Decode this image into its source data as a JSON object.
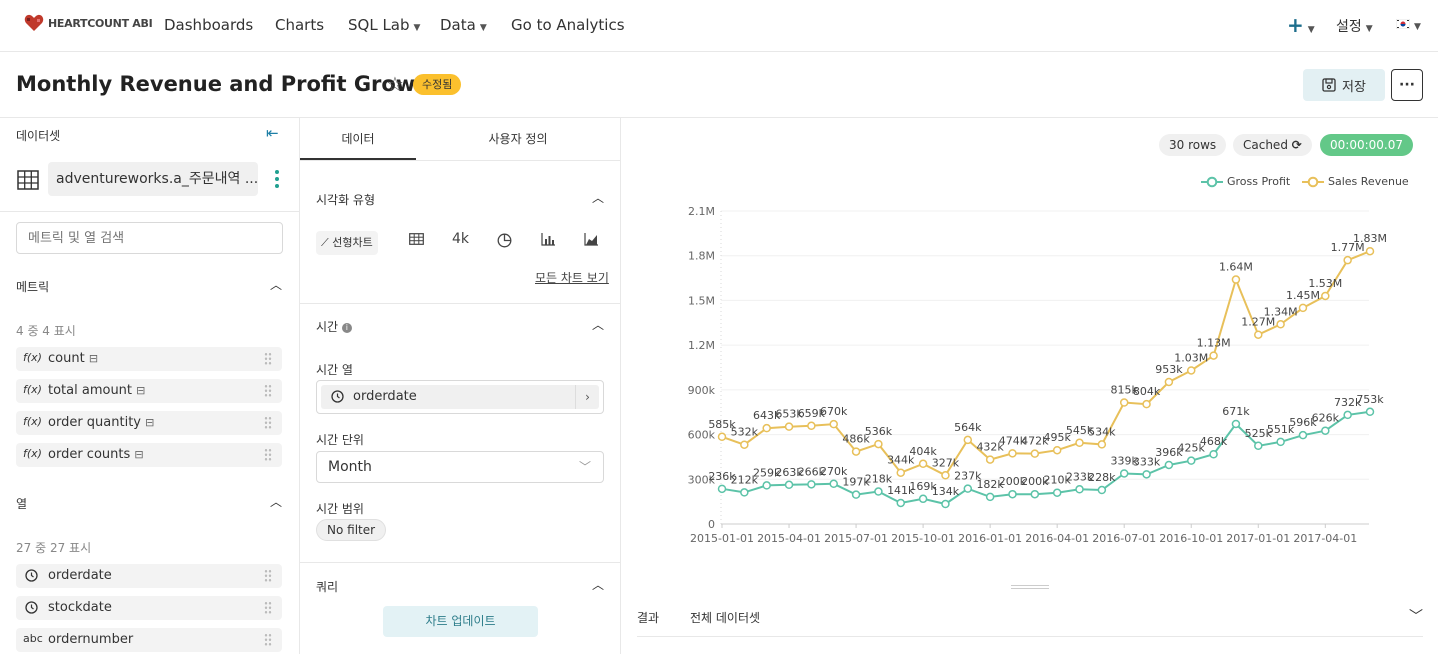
{
  "nav": {
    "brand": "HEARTCOUNT ABI",
    "items": [
      {
        "label": "Dashboards",
        "dropdown": false
      },
      {
        "label": "Charts",
        "dropdown": false
      },
      {
        "label": "SQL Lab",
        "dropdown": true
      },
      {
        "label": "Data",
        "dropdown": true
      },
      {
        "label": "Go to Analytics",
        "dropdown": false
      }
    ],
    "add_icon": "plus-icon",
    "settings_label": "설정",
    "language_icon": "korean-flag-icon"
  },
  "header": {
    "title": "Monthly Revenue and Profit Growth",
    "badge": "수정됨",
    "save_label": "저장",
    "more_icon": "ellipsis-icon"
  },
  "dataset_panel": {
    "title": "데이터셋",
    "dataset_name": "adventureworks.a_주문내역 ...",
    "search_placeholder": "메트릭 및 열 검색",
    "metrics": {
      "title": "메트릭",
      "count_label": "4 중 4 표시",
      "items": [
        {
          "prefix": "f(x)",
          "name": "count"
        },
        {
          "prefix": "f(x)",
          "name": "total amount"
        },
        {
          "prefix": "f(x)",
          "name": "order quantity"
        },
        {
          "prefix": "f(x)",
          "name": "order counts"
        }
      ]
    },
    "columns": {
      "title": "열",
      "count_label": "27 중 27 표시",
      "items": [
        {
          "type_icon": "clock-icon",
          "name": "orderdate"
        },
        {
          "type_icon": "clock-icon",
          "name": "stockdate"
        },
        {
          "type_label": "abc",
          "name": "ordernumber"
        }
      ]
    }
  },
  "config_panel": {
    "tabs": [
      {
        "label": "데이터"
      },
      {
        "label": "사용자 정의"
      }
    ],
    "viz": {
      "title": "시각화 유형",
      "selected": "선형차트",
      "number_icon": "4k",
      "all_charts_link": "모든 차트 보기"
    },
    "time": {
      "title": "시간",
      "column_label": "시간 열",
      "column_value": "orderdate",
      "grain_label": "시간 단위",
      "grain_value": "Month",
      "range_label": "시간 범위",
      "range_value": "No filter"
    },
    "query": {
      "title": "쿼리",
      "update_button": "차트 업데이트"
    }
  },
  "chart_panel": {
    "rows_badge": "30 rows",
    "cached_badge": "Cached",
    "timer_badge": "00:00:00.07",
    "results_label": "결과",
    "results_tab": "전체 데이터셋",
    "colors": {
      "profit": "#5cc3a8",
      "revenue": "#e8c05a"
    }
  },
  "chart_data": {
    "type": "line",
    "title": "",
    "xlabel": "",
    "ylabel": "",
    "ylim": [
      0,
      2100000
    ],
    "y_ticks": [
      0,
      300000,
      600000,
      900000,
      1200000,
      1500000,
      1800000,
      2100000
    ],
    "y_tick_labels": [
      "0",
      "300k",
      "600k",
      "900k",
      "1.2M",
      "1.5M",
      "1.8M",
      "2.1M"
    ],
    "x_tick_labels": [
      "2015-01-01",
      "2015-04-01",
      "2015-07-01",
      "2015-10-01",
      "2016-01-01",
      "2016-04-01",
      "2016-07-01",
      "2016-10-01",
      "2017-01-01",
      "2017-04-01"
    ],
    "legend_position": "top-right",
    "grid": true,
    "series": [
      {
        "name": "Gross Profit",
        "values": [
          236000,
          212000,
          259000,
          263000,
          266000,
          270000,
          197000,
          218000,
          141000,
          169000,
          134000,
          237000,
          182000,
          200000,
          200000,
          210000,
          233000,
          228000,
          339000,
          333000,
          396000,
          425000,
          468000,
          671000,
          525000,
          551000,
          596000,
          626000,
          732000,
          753000
        ],
        "labels": [
          "236k",
          "212k",
          "259k",
          "263k",
          "266k",
          "270k",
          "197k",
          "218k",
          "141k",
          "169k",
          "134k",
          "237k",
          "182k",
          "200k",
          "200k",
          "210k",
          "233k",
          "228k",
          "339k",
          "333k",
          "396k",
          "425k",
          "468k",
          "671k",
          "525k",
          "551k",
          "596k",
          "626k",
          "732k",
          "753k"
        ]
      },
      {
        "name": "Sales Revenue",
        "values": [
          585000,
          532000,
          643000,
          653000,
          659000,
          670000,
          486000,
          536000,
          344000,
          404000,
          327000,
          564000,
          432000,
          474000,
          472000,
          495000,
          545000,
          534000,
          815000,
          804000,
          953000,
          1030000,
          1130000,
          1640000,
          1270000,
          1340000,
          1450000,
          1530000,
          1770000,
          1830000
        ],
        "labels": [
          "585k",
          "532k",
          "643k",
          "653k",
          "659k",
          "670k",
          "486k",
          "536k",
          "344k",
          "404k",
          "327k",
          "564k",
          "432k",
          "474k",
          "472k",
          "495k",
          "545k",
          "534k",
          "815k",
          "804k",
          "953k",
          "1.03M",
          "1.13M",
          "1.64M",
          "1.27M",
          "1.34M",
          "1.45M",
          "1.53M",
          "1.77M",
          "1.83M"
        ]
      }
    ]
  }
}
